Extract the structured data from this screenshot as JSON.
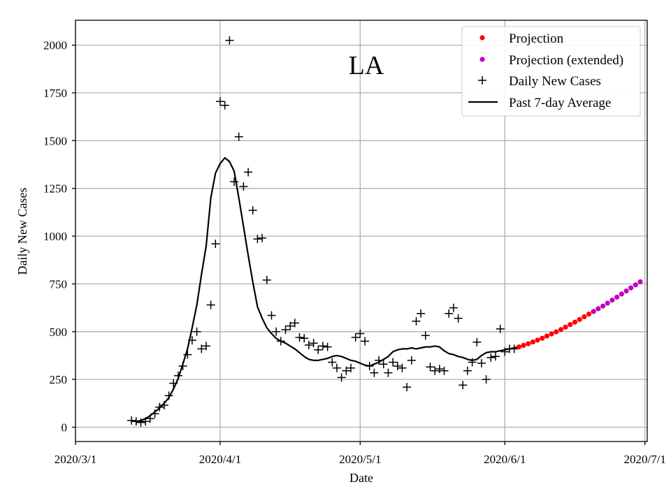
{
  "chart_data": {
    "type": "scatter",
    "title": "LA",
    "xlabel": "Date",
    "ylabel": "Daily New Cases",
    "xlim_day": [
      0,
      122.5
    ],
    "ylim": [
      -75,
      2130
    ],
    "x_ticks": [
      {
        "day": 0,
        "label": "2020/3/1"
      },
      {
        "day": 31,
        "label": "2020/4/1"
      },
      {
        "day": 61,
        "label": "2020/5/1"
      },
      {
        "day": 92,
        "label": "2020/6/1"
      },
      {
        "day": 122,
        "label": "2020/7/1"
      }
    ],
    "y_ticks": [
      0,
      250,
      500,
      750,
      1000,
      1250,
      1500,
      1750,
      2000
    ],
    "grid": true,
    "legend_position": "top-right",
    "day_origin": "2020/3/1",
    "series": [
      {
        "name": "Projection",
        "kind": "scatter-dot",
        "color": "#ff0000",
        "x_days": [
          95,
          96,
          97,
          98,
          99,
          100,
          101,
          102,
          103,
          104,
          105,
          106,
          107,
          108,
          109,
          110,
          111
        ],
        "values": [
          420,
          428,
          437,
          446,
          456,
          466,
          477,
          488,
          499,
          511,
          524,
          537,
          550,
          564,
          578,
          592,
          606
        ]
      },
      {
        "name": "Projection (extended)",
        "kind": "scatter-dot",
        "color": "#bf00bf",
        "x_days": [
          111,
          112,
          113,
          114,
          115,
          116,
          117,
          118,
          119,
          120,
          121
        ],
        "values": [
          606,
          620,
          634,
          649,
          665,
          681,
          697,
          713,
          729,
          745,
          761
        ]
      },
      {
        "name": "Daily New Cases",
        "kind": "scatter-plus",
        "color": "#000000",
        "x_days": [
          12,
          13,
          14,
          15,
          16,
          17,
          18,
          19,
          20,
          21,
          22,
          23,
          24,
          25,
          26,
          27,
          28,
          29,
          30,
          31,
          32,
          33,
          34,
          35,
          36,
          37,
          38,
          39,
          40,
          41,
          42,
          43,
          44,
          45,
          46,
          47,
          48,
          49,
          50,
          51,
          52,
          53,
          54,
          55,
          56,
          57,
          58,
          59,
          60,
          61,
          62,
          63,
          64,
          65,
          66,
          67,
          68,
          69,
          70,
          71,
          72,
          73,
          74,
          75,
          76,
          77,
          78,
          79,
          80,
          81,
          82,
          83,
          84,
          85,
          86,
          87,
          88,
          89,
          90,
          91,
          92,
          93,
          94
        ],
        "values": [
          35,
          30,
          25,
          30,
          45,
          70,
          105,
          115,
          165,
          230,
          270,
          320,
          380,
          455,
          500,
          410,
          425,
          640,
          960,
          1705,
          1685,
          2025,
          1285,
          1520,
          1260,
          1335,
          1135,
          985,
          990,
          770,
          585,
          500,
          450,
          510,
          530,
          545,
          470,
          465,
          430,
          440,
          405,
          425,
          420,
          340,
          310,
          260,
          295,
          310,
          470,
          490,
          450,
          320,
          285,
          350,
          330,
          285,
          340,
          320,
          310,
          210,
          350,
          555,
          595,
          480,
          315,
          295,
          305,
          295,
          595,
          625,
          570,
          220,
          295,
          340,
          445,
          335,
          250,
          365,
          370,
          515,
          395,
          410,
          410
        ]
      },
      {
        "name": "Past 7-day Average",
        "kind": "line",
        "color": "#000000",
        "x_days": [
          12,
          13,
          14,
          15,
          16,
          17,
          18,
          19,
          20,
          21,
          22,
          23,
          24,
          25,
          26,
          27,
          28,
          29,
          30,
          31,
          32,
          33,
          34,
          35,
          36,
          37,
          38,
          39,
          40,
          41,
          42,
          43,
          44,
          45,
          46,
          47,
          48,
          49,
          50,
          51,
          52,
          53,
          54,
          55,
          56,
          57,
          58,
          59,
          60,
          61,
          62,
          63,
          64,
          65,
          66,
          67,
          68,
          69,
          70,
          71,
          72,
          73,
          74,
          75,
          76,
          77,
          78,
          79,
          80,
          81,
          82,
          83,
          84,
          85,
          86,
          87,
          88,
          89,
          90,
          91,
          92,
          93,
          94,
          95
        ],
        "values": [
          35,
          30,
          35,
          45,
          60,
          80,
          100,
          125,
          155,
          200,
          255,
          330,
          410,
          520,
          640,
          800,
          950,
          1200,
          1330,
          1380,
          1410,
          1390,
          1340,
          1200,
          1050,
          900,
          760,
          630,
          570,
          520,
          490,
          465,
          450,
          440,
          425,
          410,
          390,
          370,
          355,
          350,
          350,
          355,
          360,
          370,
          375,
          370,
          360,
          350,
          345,
          335,
          325,
          320,
          330,
          340,
          355,
          370,
          395,
          405,
          410,
          410,
          415,
          410,
          415,
          420,
          420,
          425,
          420,
          400,
          385,
          380,
          370,
          365,
          355,
          350,
          355,
          375,
          390,
          395,
          395,
          400,
          405,
          410,
          415,
          420
        ]
      }
    ]
  }
}
